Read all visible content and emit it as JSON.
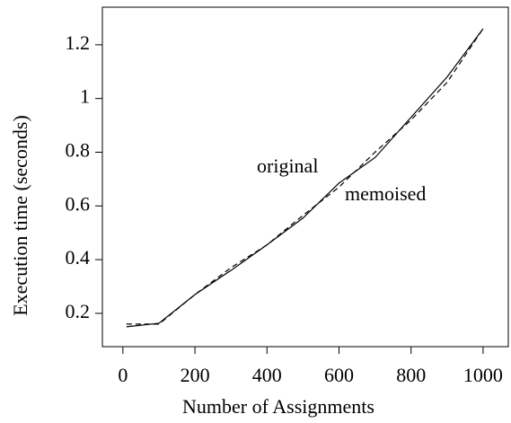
{
  "chart_data": {
    "type": "line",
    "x_label": "Number of Assignments",
    "y_label": "Execution time (seconds)",
    "x": [
      10,
      100,
      200,
      300,
      400,
      500,
      600,
      700,
      800,
      900,
      1000
    ],
    "series": [
      {
        "name": "original",
        "color": "#000000",
        "dash": "solid",
        "values": [
          0.15,
          0.163,
          0.27,
          0.36,
          0.455,
          0.555,
          0.685,
          0.78,
          0.93,
          1.08,
          1.26
        ]
      },
      {
        "name": "memoised",
        "color": "#000000",
        "dash": "dashed",
        "values": [
          0.16,
          0.16,
          0.27,
          0.37,
          0.455,
          0.565,
          0.67,
          0.8,
          0.92,
          1.06,
          1.26
        ]
      }
    ],
    "xlim": [
      -57,
      1070
    ],
    "xticks": [
      0,
      200,
      400,
      600,
      800,
      1000
    ],
    "ylim": [
      0.076,
      1.34
    ],
    "yticks": [
      0.2,
      0.4,
      0.6,
      0.8,
      1,
      1.2
    ],
    "grid": false
  }
}
